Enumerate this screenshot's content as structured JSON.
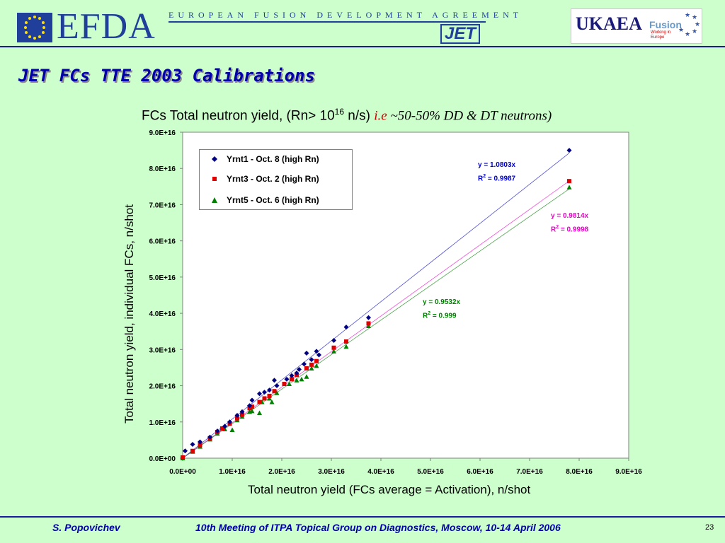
{
  "header": {
    "efda_logo": "EFDA",
    "efda_line": "EUROPEAN FUSION DEVELOPMENT AGREEMENT",
    "jet_logo": "JET",
    "ukaea_logo": "UKAEA",
    "ukaea_fusion": "Fusion",
    "ukaea_sub": "Working in Europe"
  },
  "slide": {
    "title": "JET FCs TTE 2003 Calibrations",
    "footer_author": "S. Popovichev",
    "footer_meeting": "10th Meeting of ITPA Topical Group on Diagnostics, Moscow, 10-14 April 2006",
    "page_number": "23"
  },
  "colors": {
    "background": "#ccffcc",
    "title": "#0000aa",
    "series_yrnt1": "#000080",
    "series_yrnt3": "#e00000",
    "series_yrnt5": "#008000",
    "fit_yrnt1": "#0000cc",
    "fit_yrnt3": "#ee00cc",
    "fit_yrnt5": "#008000"
  },
  "chart_data": {
    "type": "scatter",
    "title_main": "FCs Total neutron yield, (Rn> 10",
    "title_sup": "16",
    "title_unit": " n/s) ",
    "title_accent": "i.e",
    "title_italic": " ~50-50% DD & DT neutrons)",
    "xlabel": "Total neutron yield (FCs average = Activation), n/shot",
    "ylabel": "Total neutron yield, individual FCs, n/shot",
    "xlim": [
      0,
      9e+16
    ],
    "ylim": [
      0,
      9e+16
    ],
    "x_ticks": [
      "0.0E+00",
      "1.0E+16",
      "2.0E+16",
      "3.0E+16",
      "4.0E+16",
      "5.0E+16",
      "6.0E+16",
      "7.0E+16",
      "8.0E+16",
      "9.0E+16"
    ],
    "y_ticks": [
      "0.0E+00",
      "1.0E+16",
      "2.0E+16",
      "3.0E+16",
      "4.0E+16",
      "5.0E+16",
      "6.0E+16",
      "7.0E+16",
      "8.0E+16",
      "9.0E+16"
    ],
    "grid": false,
    "legend_placement": "top-left",
    "series": [
      {
        "name": "Yrnt1 - Oct. 8 (high Rn)",
        "marker": "diamond",
        "fit_eq": "y = 1.0803x",
        "fit_r2_label": "R",
        "fit_r2_value": " = 0.9987",
        "slope": 1.0803,
        "points": [
          [
            0.05,
            0.2
          ],
          [
            0.2,
            0.38
          ],
          [
            0.35,
            0.45
          ],
          [
            0.55,
            0.58
          ],
          [
            0.7,
            0.75
          ],
          [
            0.85,
            0.88
          ],
          [
            0.95,
            1.0
          ],
          [
            1.1,
            1.18
          ],
          [
            1.2,
            1.28
          ],
          [
            1.35,
            1.45
          ],
          [
            1.4,
            1.6
          ],
          [
            1.55,
            1.78
          ],
          [
            1.65,
            1.82
          ],
          [
            1.75,
            1.88
          ],
          [
            1.85,
            2.15
          ],
          [
            1.9,
            2.0
          ],
          [
            2.1,
            2.18
          ],
          [
            2.2,
            2.28
          ],
          [
            2.3,
            2.35
          ],
          [
            2.35,
            2.45
          ],
          [
            2.45,
            2.6
          ],
          [
            2.5,
            2.9
          ],
          [
            2.6,
            2.72
          ],
          [
            2.7,
            2.95
          ],
          [
            2.75,
            2.85
          ],
          [
            3.05,
            3.25
          ],
          [
            3.3,
            3.62
          ],
          [
            3.75,
            3.88
          ],
          [
            7.8,
            8.5
          ]
        ]
      },
      {
        "name": "Yrnt3 - Oct. 2 (high Rn)",
        "marker": "square",
        "fit_eq": "y = 0.9814x",
        "fit_r2_label": "R",
        "fit_r2_value": " = 0.9998",
        "slope": 0.9814,
        "points": [
          [
            0.0,
            0.02
          ],
          [
            0.2,
            0.2
          ],
          [
            0.35,
            0.36
          ],
          [
            0.55,
            0.55
          ],
          [
            0.7,
            0.72
          ],
          [
            0.8,
            0.82
          ],
          [
            0.95,
            0.95
          ],
          [
            1.1,
            1.1
          ],
          [
            1.2,
            1.2
          ],
          [
            1.35,
            1.38
          ],
          [
            1.4,
            1.42
          ],
          [
            1.55,
            1.55
          ],
          [
            1.65,
            1.65
          ],
          [
            1.75,
            1.72
          ],
          [
            1.85,
            1.85
          ],
          [
            2.05,
            2.05
          ],
          [
            2.2,
            2.18
          ],
          [
            2.3,
            2.3
          ],
          [
            2.5,
            2.48
          ],
          [
            2.6,
            2.58
          ],
          [
            2.7,
            2.68
          ],
          [
            3.05,
            3.05
          ],
          [
            3.3,
            3.22
          ],
          [
            3.75,
            3.72
          ],
          [
            7.8,
            7.65
          ]
        ]
      },
      {
        "name": "Yrnt5 - Oct. 6 (high Rn)",
        "marker": "triangle",
        "fit_eq": "y = 0.9532x",
        "fit_r2_label": "R",
        "fit_r2_value": " = 0.999",
        "slope": 0.9532,
        "points": [
          [
            0.0,
            0.0
          ],
          [
            0.2,
            0.18
          ],
          [
            0.35,
            0.32
          ],
          [
            0.55,
            0.52
          ],
          [
            0.7,
            0.68
          ],
          [
            0.85,
            0.8
          ],
          [
            1.0,
            0.78
          ],
          [
            1.1,
            1.05
          ],
          [
            1.2,
            1.15
          ],
          [
            1.35,
            1.28
          ],
          [
            1.4,
            1.3
          ],
          [
            1.55,
            1.25
          ],
          [
            1.6,
            1.55
          ],
          [
            1.75,
            1.65
          ],
          [
            1.8,
            1.55
          ],
          [
            1.9,
            1.8
          ],
          [
            2.15,
            2.05
          ],
          [
            2.3,
            2.15
          ],
          [
            2.4,
            2.18
          ],
          [
            2.5,
            2.25
          ],
          [
            2.6,
            2.48
          ],
          [
            2.7,
            2.55
          ],
          [
            3.05,
            2.95
          ],
          [
            3.3,
            3.08
          ],
          [
            3.75,
            3.65
          ],
          [
            7.8,
            7.48
          ]
        ]
      }
    ]
  }
}
